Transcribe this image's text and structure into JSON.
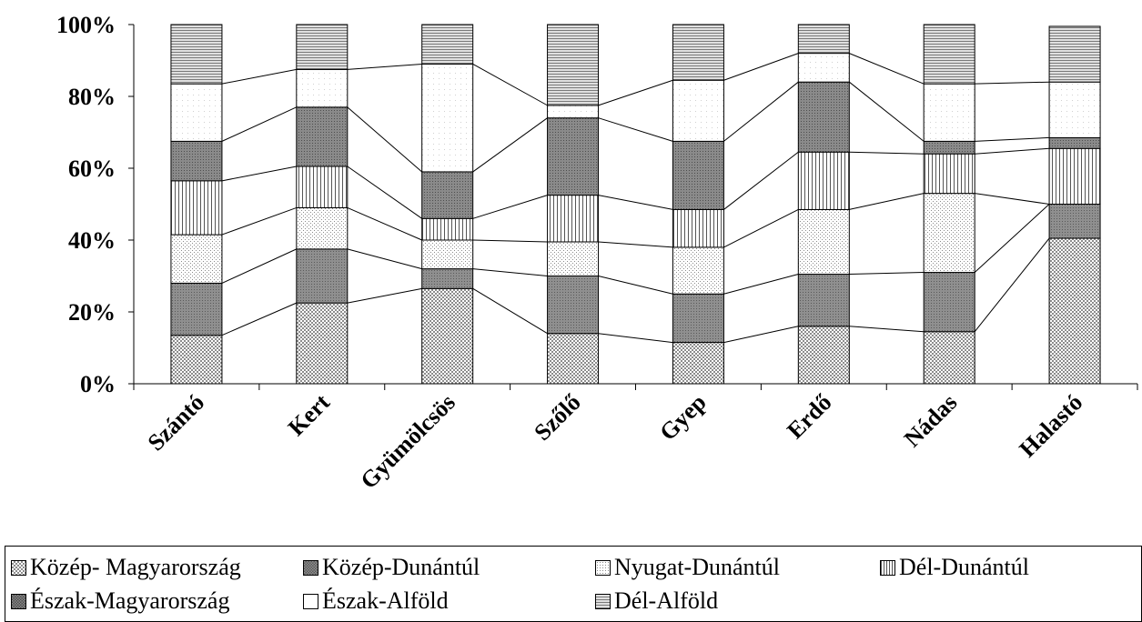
{
  "chart_data": {
    "type": "bar",
    "stacked": true,
    "percent": true,
    "categories": [
      "Szántó",
      "Kert",
      "Gyümölcsös",
      "Szőlő",
      "Gyep",
      "Erdő",
      "Nádas",
      "Halastó"
    ],
    "series": [
      {
        "name": "Közép- Magyarország",
        "values": [
          13.5,
          22.5,
          26.5,
          14,
          11.5,
          16,
          14.5,
          40.5
        ],
        "color": "#c8c8c8"
      },
      {
        "name": "Közép-Dunántúl",
        "values": [
          14.5,
          15,
          5.5,
          16,
          13.5,
          14.5,
          16.5,
          9.5
        ],
        "color": "#8f8f8f"
      },
      {
        "name": "Nyugat-Dunántúl",
        "values": [
          13.5,
          11.5,
          8,
          9.5,
          13,
          18,
          22,
          0
        ],
        "color": "#ececec"
      },
      {
        "name": "Dél-Dunántúl",
        "values": [
          15,
          11.5,
          6,
          13,
          10.5,
          16,
          11,
          15.5
        ],
        "color": "#d9d9d9"
      },
      {
        "name": "Észak-Magyarország",
        "values": [
          11,
          16.5,
          13,
          21.5,
          19,
          19.5,
          3.5,
          3
        ],
        "color": "#8a8a8a"
      },
      {
        "name": "Észak-Alföld",
        "values": [
          16,
          10.5,
          30,
          3.5,
          17,
          8,
          16,
          15.5
        ],
        "color": "#ffffff"
      },
      {
        "name": "Dél-Alföld",
        "values": [
          16.5,
          12.5,
          11,
          22.5,
          15.5,
          8,
          16.5,
          15.5
        ],
        "color": "#bdbdbd"
      }
    ],
    "yticks": [
      "0%",
      "20%",
      "40%",
      "60%",
      "80%",
      "100%"
    ],
    "ylim": [
      0,
      100
    ],
    "legend_position": "bottom",
    "grid": false
  }
}
